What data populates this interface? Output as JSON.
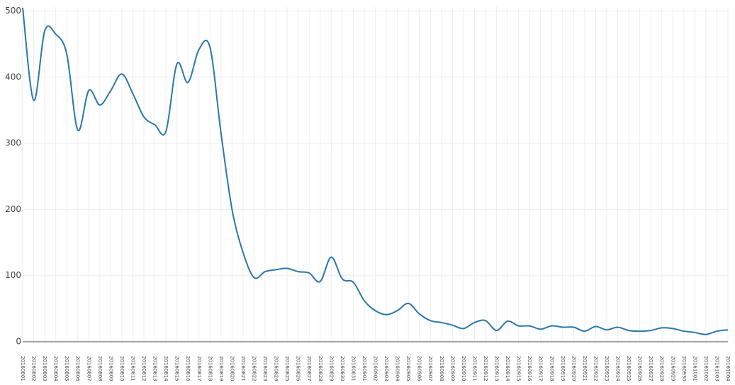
{
  "chart_data": {
    "type": "line",
    "categories": [
      "20160801",
      "20160802",
      "20160803",
      "20160804",
      "20160805",
      "20160806",
      "20160807",
      "20160808",
      "20160809",
      "20160810",
      "20160811",
      "20160812",
      "20160813",
      "20160814",
      "20160815",
      "20160816",
      "20160817",
      "20160818",
      "20160819",
      "20160820",
      "20160821",
      "20160822",
      "20160823",
      "20160824",
      "20160825",
      "20160826",
      "20160827",
      "20160828",
      "20160829",
      "20160830",
      "20160831",
      "20160901",
      "20160902",
      "20160903",
      "20160904",
      "20160905",
      "20160906",
      "20160907",
      "20160908",
      "20160909",
      "20160910",
      "20160911",
      "20160912",
      "20160913",
      "20160914",
      "20160915",
      "20160916",
      "20160917",
      "20160918",
      "20160919",
      "20160920",
      "20160921",
      "20160922",
      "20160923",
      "20160924",
      "20160925",
      "20160926",
      "20160927",
      "20160928",
      "20160929",
      "20160930",
      "20161001",
      "20161002",
      "20161003",
      "20161004"
    ],
    "series": [
      {
        "color": "#2a77ab",
        "values": [
          505,
          365,
          470,
          465,
          435,
          320,
          380,
          358,
          380,
          405,
          375,
          340,
          328,
          318,
          420,
          392,
          442,
          445,
          315,
          200,
          135,
          97,
          106,
          109,
          111,
          106,
          104,
          91,
          128,
          95,
          90,
          62,
          47,
          41,
          47,
          58,
          42,
          32,
          29,
          25,
          20,
          29,
          32,
          17,
          31,
          24,
          24,
          19,
          24,
          22,
          22,
          16,
          23,
          18,
          22,
          17,
          16,
          17,
          21,
          20,
          16,
          14,
          11,
          16,
          18
        ]
      }
    ],
    "ylim": [
      0,
      506
    ],
    "yticks": [
      0,
      100,
      200,
      300,
      400,
      500
    ],
    "grid": true
  }
}
